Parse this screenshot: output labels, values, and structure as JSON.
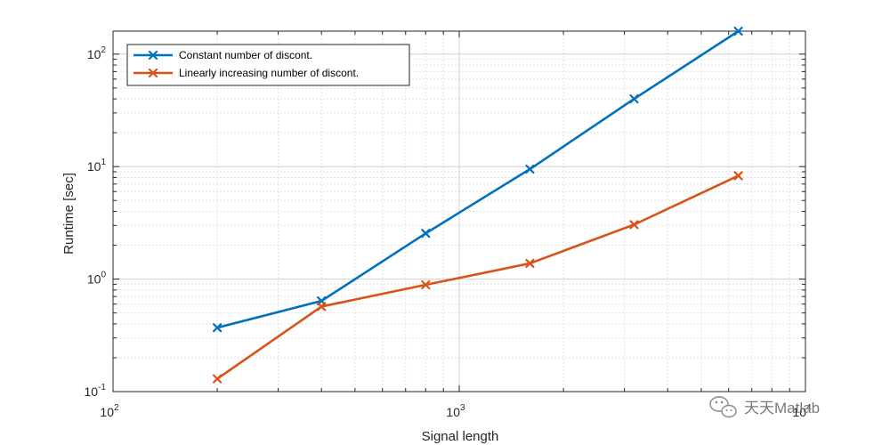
{
  "chart_data": {
    "type": "line",
    "xscale": "log",
    "yscale": "log",
    "xlim": [
      100,
      10000
    ],
    "ylim": [
      0.1,
      160
    ],
    "xlabel": "Signal length",
    "ylabel": "Runtime [sec]",
    "grid": true,
    "minor_grid": true,
    "legend_position": "top-left",
    "x_ticks": [
      {
        "value": 100,
        "base": "10",
        "exp": "2"
      },
      {
        "value": 1000,
        "base": "10",
        "exp": "3"
      },
      {
        "value": 10000,
        "base": "10",
        "exp": "4"
      }
    ],
    "y_ticks": [
      {
        "value": 0.1,
        "base": "10",
        "exp": "-1"
      },
      {
        "value": 1,
        "base": "10",
        "exp": "0"
      },
      {
        "value": 10,
        "base": "10",
        "exp": "1"
      },
      {
        "value": 100,
        "base": "10",
        "exp": "2"
      }
    ],
    "series": [
      {
        "name": "Constant number of discont.",
        "color": "#0072BD",
        "marker": "x",
        "x": [
          200,
          400,
          800,
          1600,
          3200,
          6400
        ],
        "y": [
          0.37,
          0.64,
          2.55,
          9.5,
          40,
          160
        ]
      },
      {
        "name": "Linearly increasing number of discont.",
        "color": "#D95319",
        "marker": "x",
        "x": [
          200,
          400,
          800,
          1600,
          3200,
          6400
        ],
        "y": [
          0.13,
          0.57,
          0.89,
          1.38,
          3.05,
          8.3
        ]
      }
    ]
  },
  "watermark": {
    "text": "天天Matlab",
    "icon": "wechat-icon"
  }
}
